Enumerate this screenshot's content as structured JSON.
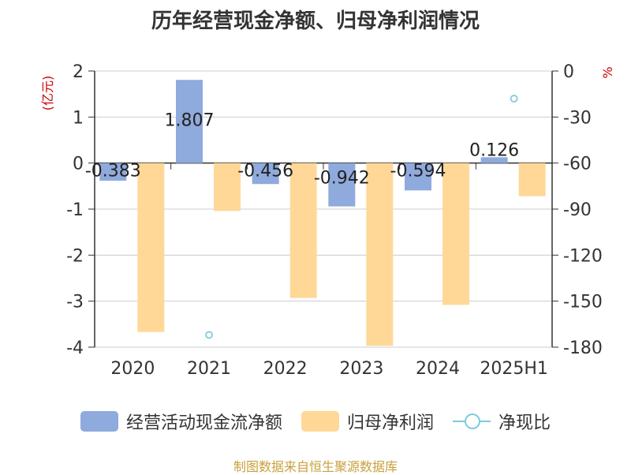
{
  "title": "历年经营现金净额、归母净利润情况",
  "source": "制图数据来自恒生聚源数据库",
  "colors": {
    "cash_flow": "#8faadc",
    "net_profit": "#ffd898",
    "ratio": "#7ecbdc",
    "unit_label": "#cc0000"
  },
  "chart_data": {
    "type": "bar",
    "categories": [
      "2020",
      "2021",
      "2022",
      "2023",
      "2024",
      "2025H1"
    ],
    "left_axis": {
      "unit": "(亿元)",
      "ylim": [
        -4,
        2
      ],
      "ticks": [
        "2",
        "1",
        "0",
        "-1",
        "-2",
        "-3",
        "-4"
      ]
    },
    "right_axis": {
      "unit": "%",
      "ylim": [
        -180,
        0
      ],
      "ticks": [
        "0",
        "-30",
        "-60",
        "-90",
        "-120",
        "-150",
        "-180"
      ]
    },
    "series": [
      {
        "name": "经营活动现金流净额",
        "type": "bar",
        "axis": "left",
        "values": [
          -0.383,
          1.807,
          -0.456,
          -0.942,
          -0.594,
          0.126
        ],
        "labels": [
          "-0.383",
          "1.807",
          "-0.456",
          "-0.942",
          "-0.594",
          "0.126"
        ]
      },
      {
        "name": "归母净利润",
        "type": "bar",
        "axis": "left",
        "values": [
          -3.67,
          -1.04,
          -2.93,
          -3.97,
          -3.08,
          -0.72
        ]
      },
      {
        "name": "净现比",
        "type": "line",
        "axis": "right",
        "values": [
          null,
          -172,
          null,
          null,
          null,
          -18
        ]
      }
    ],
    "grid": true,
    "legend": "bottom"
  }
}
